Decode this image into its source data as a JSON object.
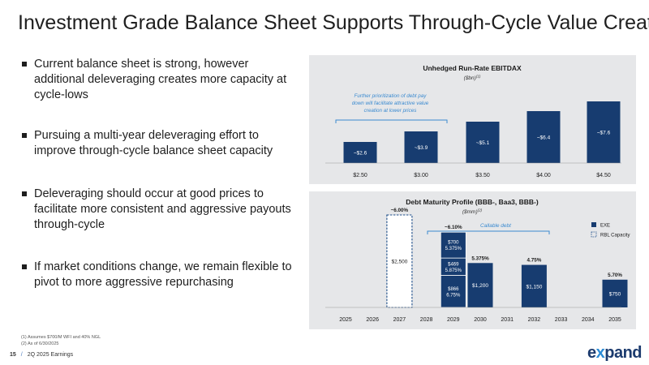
{
  "title": "Investment Grade Balance Sheet Supports Through-Cycle Value Creation",
  "bullets": [
    "Current balance sheet is strong, however additional deleveraging creates more capacity at cycle-lows",
    "Pursuing a multi-year deleveraging effort to improve through-cycle balance sheet capacity",
    "Deleveraging should occur at good prices to facilitate more consistent and aggressive payouts through-cycle",
    "If market conditions change, we remain flexible to pivot to more aggressive repurchasing"
  ],
  "footnotes": [
    "(1)   Assumes $700/M WFI and 40% NGL",
    "(2)   As of 6/30/2025"
  ],
  "footer": {
    "page": "15",
    "separator": "/",
    "label": "2Q 2025 Earnings"
  },
  "logo": {
    "prefix": "e",
    "x": "x",
    "rest": "pand"
  },
  "colors": {
    "bar": "#173c70",
    "panel": "#e6e7e9",
    "accent": "#3a8ad0",
    "dashed": "#1f4f8a"
  },
  "chart_data": [
    {
      "type": "bar",
      "title": "Unhedged Run-Rate EBITDAX",
      "subtitle": "($bn)",
      "subtitle_sup": "(1)",
      "categories": [
        "$2.50",
        "$3.00",
        "$3.50",
        "$4.00",
        "$4.50"
      ],
      "values": [
        2.6,
        3.9,
        5.1,
        6.4,
        7.6
      ],
      "labels": [
        "~$2.6",
        "~$3.9",
        "~$5.1",
        "~$6.4",
        "~$7.6"
      ],
      "annotation": "Further prioritization of debt pay down will facilitate attractive value creation at lower prices",
      "annotation_lines": [
        "Further prioritization of debt pay",
        "down will facilitate attractive value",
        "creation at lower prices"
      ],
      "ylim": [
        0,
        8
      ]
    },
    {
      "type": "bar",
      "title": "Debt Maturity Profile (BBB-, Baa3, BBB-)",
      "subtitle": "($mm)",
      "subtitle_sup": "(2)",
      "categories": [
        "2025",
        "2026",
        "2027",
        "2028",
        "2029",
        "2030",
        "2031",
        "2032",
        "2033",
        "2034",
        "2035"
      ],
      "series": [
        {
          "name": "EXE",
          "values": [
            0,
            0,
            0,
            0,
            2035,
            1200,
            0,
            1150,
            0,
            0,
            750
          ]
        },
        {
          "name": "RBL Capacity",
          "values": [
            0,
            0,
            2500,
            0,
            0,
            0,
            0,
            0,
            0,
            0,
            0
          ]
        }
      ],
      "segments_2029": [
        {
          "value": 866,
          "label": "$866",
          "rate": "6.75%"
        },
        {
          "value": 469,
          "label": "$469",
          "rate": "5.875%"
        },
        {
          "value": 700,
          "label": "$700",
          "rate": "5.375%"
        }
      ],
      "bar_labels": {
        "2027": "$2,500",
        "2030": "$1,200",
        "2032": "$1,150",
        "2035": "$750"
      },
      "rate_labels": {
        "2027": "~6.00%",
        "2029": "~6.10%",
        "2030": "5.375%",
        "2032": "4.75%",
        "2035": "5.70%"
      },
      "callable_label": "Callable debt",
      "legend": [
        "EXE",
        "RBL Capacity"
      ],
      "ylim": [
        0,
        2600
      ]
    }
  ]
}
